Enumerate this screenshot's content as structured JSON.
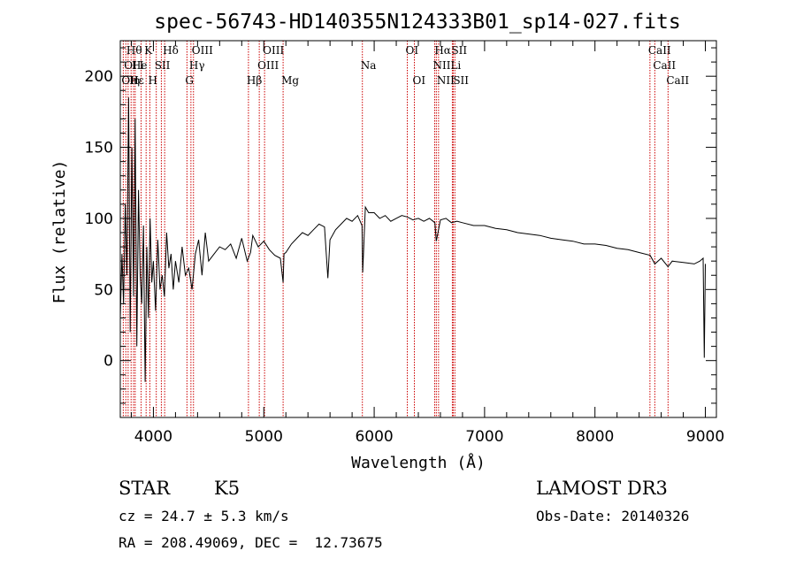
{
  "chart_data": {
    "type": "line",
    "title": "spec-56743-HD140355N124333B01_sp14-027.fits",
    "xlabel": "Wavelength (Å)",
    "ylabel": "Flux (relative)",
    "xlim": [
      3700,
      9100
    ],
    "ylim": [
      -40,
      225
    ],
    "x_ticks": [
      4000,
      5000,
      6000,
      7000,
      8000,
      9000
    ],
    "y_ticks": [
      0,
      50,
      100,
      150,
      200
    ],
    "grid": false,
    "colors": {
      "spectrum": "#000000",
      "line_marker": "#cc0000"
    },
    "series": [
      {
        "x": [
          3700,
          3715,
          3730,
          3745,
          3760,
          3775,
          3790,
          3805,
          3820,
          3835,
          3850,
          3865,
          3880,
          3895,
          3910,
          3925,
          3940,
          3955,
          3970,
          3985,
          4000,
          4020,
          4040,
          4060,
          4080,
          4100,
          4120,
          4140,
          4160,
          4180,
          4200,
          4230,
          4260,
          4290,
          4320,
          4350,
          4380,
          4410,
          4440,
          4470,
          4500,
          4550,
          4600,
          4650,
          4700,
          4750,
          4800,
          4850,
          4880,
          4900,
          4950,
          5000,
          5050,
          5100,
          5150,
          5175,
          5183,
          5200,
          5250,
          5300,
          5350,
          5400,
          5450,
          5500,
          5550,
          5580,
          5600,
          5650,
          5700,
          5750,
          5800,
          5850,
          5890,
          5896,
          5920,
          5950,
          6000,
          6050,
          6100,
          6150,
          6200,
          6250,
          6300,
          6350,
          6400,
          6450,
          6500,
          6550,
          6563,
          6600,
          6650,
          6700,
          6750,
          6800,
          6900,
          7000,
          7100,
          7200,
          7300,
          7400,
          7500,
          7600,
          7700,
          7800,
          7900,
          8000,
          8100,
          8200,
          8300,
          8400,
          8500,
          8542,
          8600,
          8662,
          8700,
          8800,
          8900,
          8950,
          8980,
          8990,
          9000
        ],
        "y": [
          30,
          75,
          40,
          110,
          60,
          185,
          20,
          150,
          45,
          170,
          10,
          120,
          60,
          40,
          95,
          -15,
          80,
          30,
          100,
          55,
          70,
          35,
          85,
          50,
          60,
          45,
          90,
          65,
          75,
          50,
          70,
          55,
          80,
          60,
          65,
          50,
          75,
          85,
          60,
          90,
          70,
          75,
          80,
          78,
          82,
          72,
          86,
          70,
          76,
          88,
          80,
          84,
          78,
          74,
          72,
          55,
          75,
          76,
          82,
          86,
          90,
          88,
          92,
          96,
          94,
          58,
          85,
          92,
          96,
          100,
          98,
          102,
          95,
          62,
          108,
          104,
          104,
          100,
          102,
          98,
          100,
          102,
          101,
          99,
          100,
          98,
          100,
          97,
          84,
          99,
          100,
          97,
          98,
          97,
          95,
          95,
          93,
          92,
          90,
          89,
          88,
          86,
          85,
          84,
          82,
          82,
          81,
          79,
          78,
          76,
          74,
          68,
          72,
          66,
          70,
          69,
          68,
          70,
          72,
          2,
          68
        ]
      }
    ],
    "lines": [
      {
        "x": 3727,
        "row": 2,
        "label": "OII"
      },
      {
        "x": 3750,
        "row": 1,
        "label": "OI"
      },
      {
        "x": 3771,
        "row": 0,
        "label": "Hθ"
      },
      {
        "x": 3798,
        "row": 2,
        "label": "Hε"
      },
      {
        "x": 3820,
        "row": 1,
        "label": "He"
      },
      {
        "x": 3835,
        "row": 2,
        "label": "η"
      },
      {
        "x": 3889,
        "row": 1,
        "label": "I"
      },
      {
        "x": 3934,
        "row": 0,
        "label": "K"
      },
      {
        "x": 3968,
        "row": 2,
        "label": "H"
      },
      {
        "x": 4026,
        "row": 1,
        "label": "SII"
      },
      {
        "x": 4102,
        "row": 0,
        "label": "Hδ"
      },
      {
        "x": 4072,
        "row": 1,
        "label": ""
      },
      {
        "x": 4304,
        "row": 2,
        "label": "G"
      },
      {
        "x": 4340,
        "row": 1,
        "label": "Hγ"
      },
      {
        "x": 4363,
        "row": 0,
        "label": "OIII"
      },
      {
        "x": 4861,
        "row": 2,
        "label": "Hβ"
      },
      {
        "x": 4959,
        "row": 1,
        "label": "OIII"
      },
      {
        "x": 5007,
        "row": 0,
        "label": "OIII"
      },
      {
        "x": 5175,
        "row": 2,
        "label": "Mg"
      },
      {
        "x": 5893,
        "row": 1,
        "label": "Na"
      },
      {
        "x": 6300,
        "row": 0,
        "label": "OI"
      },
      {
        "x": 6364,
        "row": 2,
        "label": "OI"
      },
      {
        "x": 6548,
        "row": 1,
        "label": "NII"
      },
      {
        "x": 6563,
        "row": 0,
        "label": "Hα"
      },
      {
        "x": 6583,
        "row": 2,
        "label": "NII"
      },
      {
        "x": 6708,
        "row": 1,
        "label": "Li"
      },
      {
        "x": 6716,
        "row": 0,
        "label": "SII"
      },
      {
        "x": 6731,
        "row": 2,
        "label": "SII"
      },
      {
        "x": 8498,
        "row": 0,
        "label": "CaII"
      },
      {
        "x": 8542,
        "row": 1,
        "label": "CaII"
      },
      {
        "x": 8662,
        "row": 2,
        "label": "CaII"
      }
    ]
  },
  "info": {
    "object_class": "STAR",
    "subclass": "K5",
    "survey": "LAMOST DR3",
    "cz": "cz = 24.7 ± 5.3 km/s",
    "obs_date": "Obs-Date: 20140326",
    "coords": "RA = 208.49069, DEC =  12.73675"
  }
}
